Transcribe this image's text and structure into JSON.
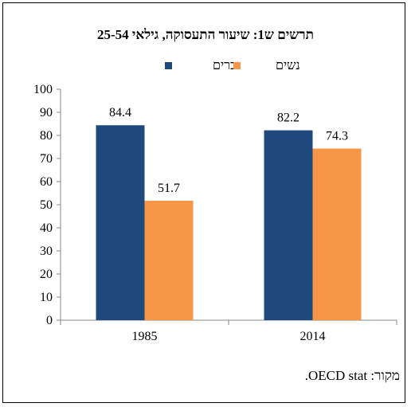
{
  "chart_data": {
    "type": "bar",
    "title": "תרשים ש1: שיעור התעסוקה, גילאי 25-54",
    "categories": [
      "1985",
      "2014"
    ],
    "series": [
      {
        "name": "גברים",
        "color": "#1F497D",
        "values": [
          84.4,
          82.2
        ],
        "labels": [
          "84.4",
          "82.2"
        ]
      },
      {
        "name": "נשים",
        "color": "#F79646",
        "values": [
          51.7,
          74.3
        ],
        "labels": [
          "51.7",
          "74.3"
        ]
      }
    ],
    "ylim": [
      0,
      100
    ],
    "yticks": [
      "0",
      "10",
      "20",
      "30",
      "40",
      "50",
      "60",
      "70",
      "80",
      "90",
      "100"
    ],
    "legend_position": "top",
    "grid": false
  },
  "source_note": "מקור: OECD stat."
}
